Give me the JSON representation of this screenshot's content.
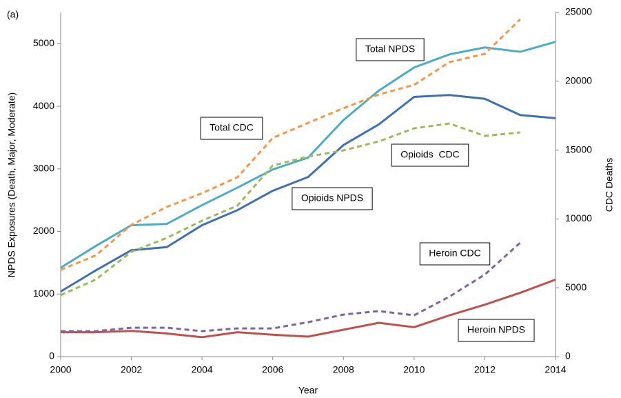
{
  "chart_data": {
    "type": "line",
    "panel_label": "(a)",
    "x_label": "Year",
    "y_label": "NPDS Exposures (Death, Major, Moderate)",
    "y2_label": "CDC Deaths",
    "x": [
      2000,
      2001,
      2002,
      2003,
      2004,
      2005,
      2006,
      2007,
      2008,
      2009,
      2010,
      2011,
      2012,
      2013,
      2014
    ],
    "xlim": [
      2000,
      2014
    ],
    "xticks": [
      2000,
      2002,
      2004,
      2006,
      2008,
      2010,
      2012,
      2014
    ],
    "ylim": [
      0,
      5500
    ],
    "yticks": [
      0,
      1000,
      2000,
      3000,
      4000,
      5000
    ],
    "y2lim": [
      0,
      25000
    ],
    "y2ticks": [
      0,
      5000,
      10000,
      15000,
      20000,
      25000
    ],
    "grid": false,
    "series": [
      {
        "name": "Total NPDS",
        "color": "#4bacc6",
        "dashed": false,
        "values": [
          1420,
          1770,
          2100,
          2120,
          2420,
          2700,
          2990,
          3180,
          3780,
          4250,
          4620,
          4830,
          4940,
          4870,
          5030
        ]
      },
      {
        "name": "Opioids NPDS",
        "color": "#3f6fb5",
        "dashed": false,
        "values": [
          1040,
          1380,
          1700,
          1750,
          2100,
          2340,
          2650,
          2870,
          3380,
          3710,
          4150,
          4180,
          4120,
          3860,
          3810
        ]
      },
      {
        "name": "Heroin NPDS",
        "color": "#c0504d",
        "dashed": false,
        "values": [
          390,
          390,
          410,
          370,
          310,
          390,
          350,
          320,
          430,
          540,
          470,
          660,
          830,
          1020,
          1230
        ]
      },
      {
        "name": "Total CDC",
        "color": "#f79646",
        "dashed": true,
        "axis": "y2",
        "values": [
          6300,
          7360,
          9570,
          10870,
          11870,
          13030,
          15880,
          16980,
          18040,
          19040,
          19740,
          21390,
          21990,
          24500,
          null
        ]
      },
      {
        "name": "Opioids  CDC",
        "color": "#9bbb59",
        "dashed": true,
        "axis": "y2",
        "values": [
          4460,
          5610,
          7610,
          8620,
          9870,
          10970,
          13880,
          14530,
          14980,
          15630,
          16580,
          16930,
          16030,
          16280,
          null
        ]
      },
      {
        "name": "Heroin CDC",
        "color": "#8064a2",
        "dashed": true,
        "axis": "y2",
        "values": [
          1850,
          1850,
          2100,
          2100,
          1850,
          2050,
          2050,
          2500,
          3050,
          3310,
          3000,
          4360,
          5960,
          8270,
          null
        ]
      }
    ]
  }
}
